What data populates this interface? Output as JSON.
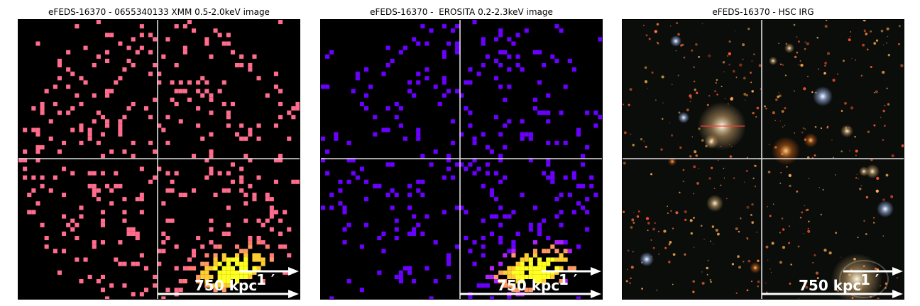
{
  "panels": [
    {
      "title": "eFEDS-16370 - 0655340133 XMM 0.5-2.0keV image",
      "arcmin_label": "1 ′",
      "kpc_label": "750 kpc",
      "palette": "pink-yellow"
    },
    {
      "title": "eFEDS-16370 -  EROSITA 0.2-2.3keV image",
      "arcmin_label": "1 ′",
      "kpc_label": "750 kpc",
      "palette": "purple-yellow"
    },
    {
      "title": "eFEDS-16370 - HSC IRG",
      "arcmin_label": "1 ′",
      "kpc_label": "750 kpc",
      "palette": "optical"
    }
  ],
  "colors": {
    "pixel_low_xmm": "#ff6c8c",
    "pixel_low_erosita": "#6a00ff",
    "pixel_high": "#ffff22",
    "crosshair": "#dddddd",
    "background": "#000000"
  }
}
